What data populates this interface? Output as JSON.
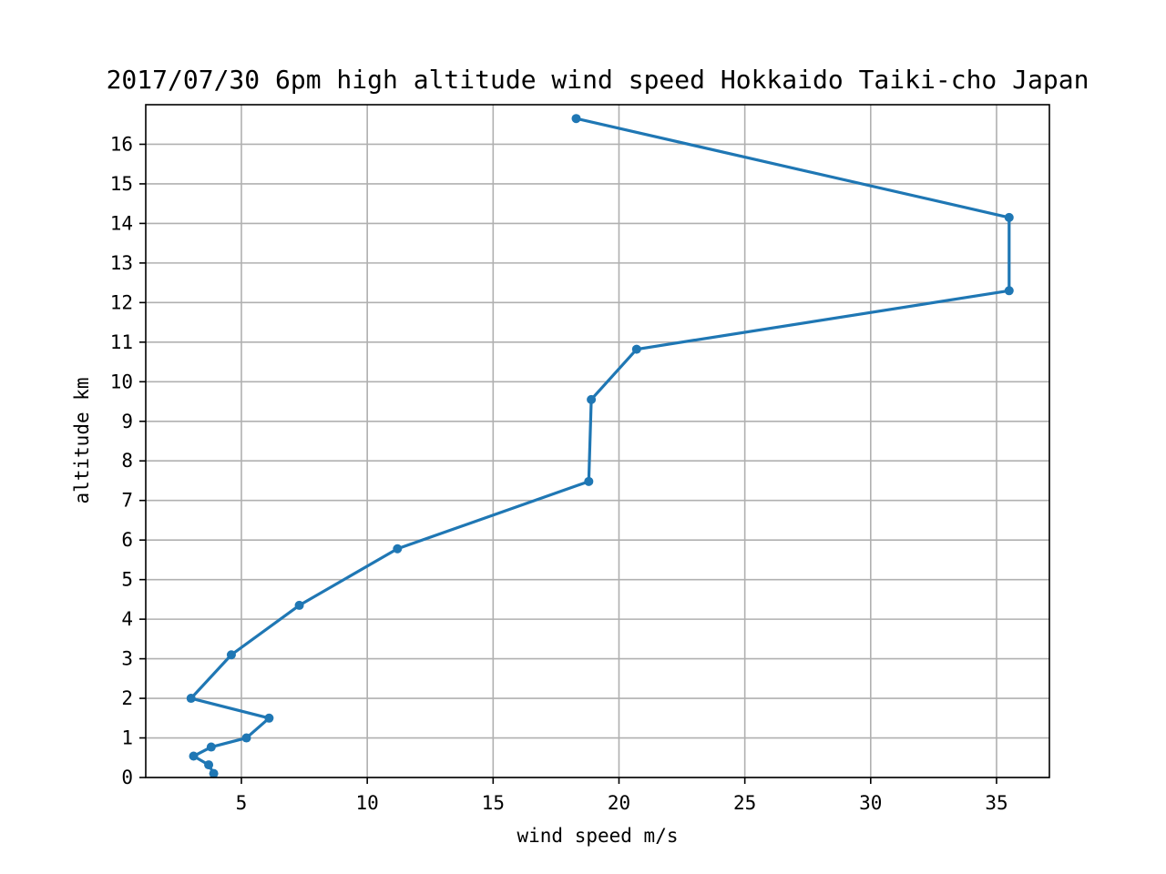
{
  "chart_data": {
    "type": "line",
    "title": "2017/07/30 6pm high altitude wind speed Hokkaido Taiki-cho Japan",
    "xlabel": "wind speed m/s",
    "ylabel": "altitude km",
    "xlim": [
      1.2,
      37.1
    ],
    "ylim": [
      0,
      17
    ],
    "xticks": [
      5,
      10,
      15,
      20,
      25,
      30,
      35
    ],
    "yticks": [
      0,
      1,
      2,
      3,
      4,
      5,
      6,
      7,
      8,
      9,
      10,
      11,
      12,
      13,
      14,
      15,
      16
    ],
    "grid": true,
    "series": [
      {
        "color": "#1f77b4",
        "marker": "circle",
        "points": [
          {
            "x": 3.9,
            "y": 0.1
          },
          {
            "x": 3.7,
            "y": 0.32
          },
          {
            "x": 3.1,
            "y": 0.54
          },
          {
            "x": 3.8,
            "y": 0.77
          },
          {
            "x": 5.2,
            "y": 1.0
          },
          {
            "x": 6.1,
            "y": 1.5
          },
          {
            "x": 3.0,
            "y": 2.0
          },
          {
            "x": 4.6,
            "y": 3.1
          },
          {
            "x": 7.3,
            "y": 4.35
          },
          {
            "x": 11.2,
            "y": 5.78
          },
          {
            "x": 18.8,
            "y": 7.48
          },
          {
            "x": 18.9,
            "y": 9.55
          },
          {
            "x": 20.7,
            "y": 10.82
          },
          {
            "x": 35.5,
            "y": 12.3
          },
          {
            "x": 35.5,
            "y": 14.15
          },
          {
            "x": 18.3,
            "y": 16.65
          }
        ]
      }
    ]
  }
}
